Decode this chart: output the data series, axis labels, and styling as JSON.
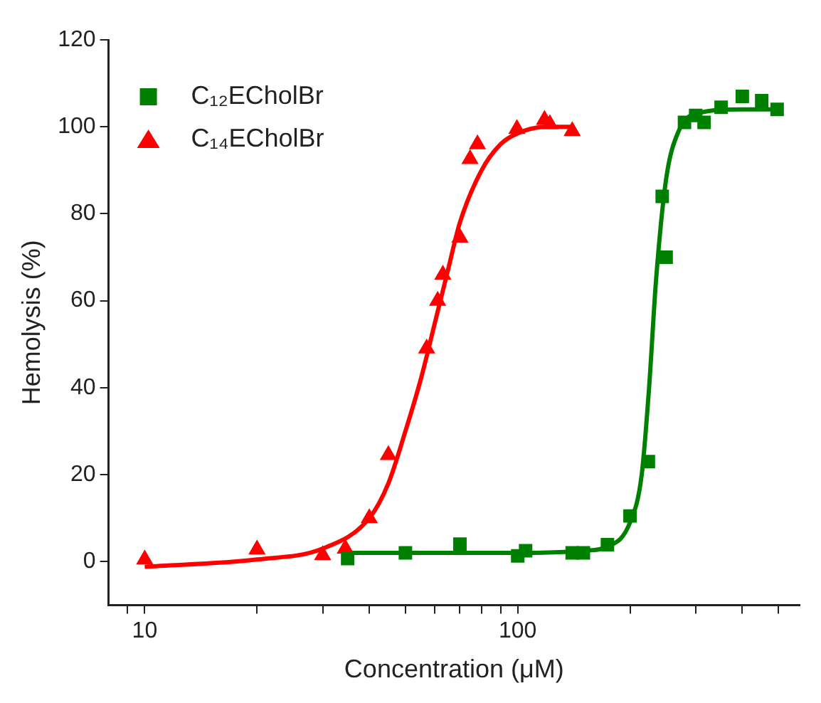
{
  "chart_data": {
    "type": "scatter",
    "xlabel": "Concentration (μM)",
    "ylabel": "Hemolysis (%)",
    "log": "x",
    "xlim": [
      8,
      570
    ],
    "ylim": [
      -10,
      120
    ],
    "xticks": [
      10,
      100,
      {
        "value": 9,
        "label": null
      },
      {
        "value": 20,
        "label": null
      },
      {
        "value": 30,
        "label": null
      },
      {
        "value": 40,
        "label": null
      },
      {
        "value": 50,
        "label": null
      },
      {
        "value": 60,
        "label": null
      },
      {
        "value": 70,
        "label": null
      },
      {
        "value": 80,
        "label": null
      },
      {
        "value": 90,
        "label": null
      },
      {
        "value": 200,
        "label": null
      },
      {
        "value": 300,
        "label": null
      },
      {
        "value": 400,
        "label": null
      },
      {
        "value": 500,
        "label": null
      }
    ],
    "yticks": [
      0,
      20,
      40,
      60,
      80,
      100,
      120
    ],
    "grid": false,
    "legend": "top left",
    "series": [
      {
        "name": "C₁₂ECholBr",
        "type": "scatter",
        "marker": "square",
        "color": "#008000",
        "x": [
          35,
          50,
          70,
          100,
          105,
          140,
          150,
          174,
          200,
          224,
          250,
          244,
          280,
          300,
          316,
          351,
          400,
          451,
          496
        ],
        "values": [
          0.7,
          2,
          4,
          1.3,
          2.5,
          2,
          2,
          3.9,
          10.5,
          23,
          70,
          84,
          101,
          102.6,
          101,
          104.5,
          107,
          106,
          104
        ]
      },
      {
        "name": "C₁₄ECholBr",
        "type": "scatter",
        "marker": "triangle",
        "color": "#ff0000",
        "x": [
          10,
          20,
          30,
          34.5,
          40,
          45,
          57,
          61,
          63,
          70,
          74.5,
          78,
          99.5,
          118,
          122,
          140
        ],
        "values": [
          0.5,
          2.8,
          1.5,
          3,
          10,
          24.5,
          49,
          60,
          66,
          74.5,
          92.6,
          96,
          99.5,
          101.6,
          100.6,
          99
        ]
      },
      {
        "type": "line",
        "marker": "none",
        "color": "#008000",
        "x": [
          35,
          100,
          150,
          175,
          200,
          215,
          225,
          235,
          250,
          270,
          300,
          400,
          500
        ],
        "values": [
          2,
          2,
          2.5,
          3.5,
          9,
          20,
          40,
          65,
          88,
          99,
          103,
          104,
          104
        ]
      },
      {
        "type": "line",
        "marker": "none",
        "color": "#ff0000",
        "x": [
          10,
          20,
          30,
          40,
          45,
          50,
          55,
          60,
          65,
          70,
          80,
          90,
          100,
          120,
          140
        ],
        "values": [
          -1.2,
          0.5,
          3,
          10,
          18,
          30,
          42,
          55,
          67,
          78,
          90,
          96,
          98.5,
          100,
          100
        ]
      }
    ]
  }
}
